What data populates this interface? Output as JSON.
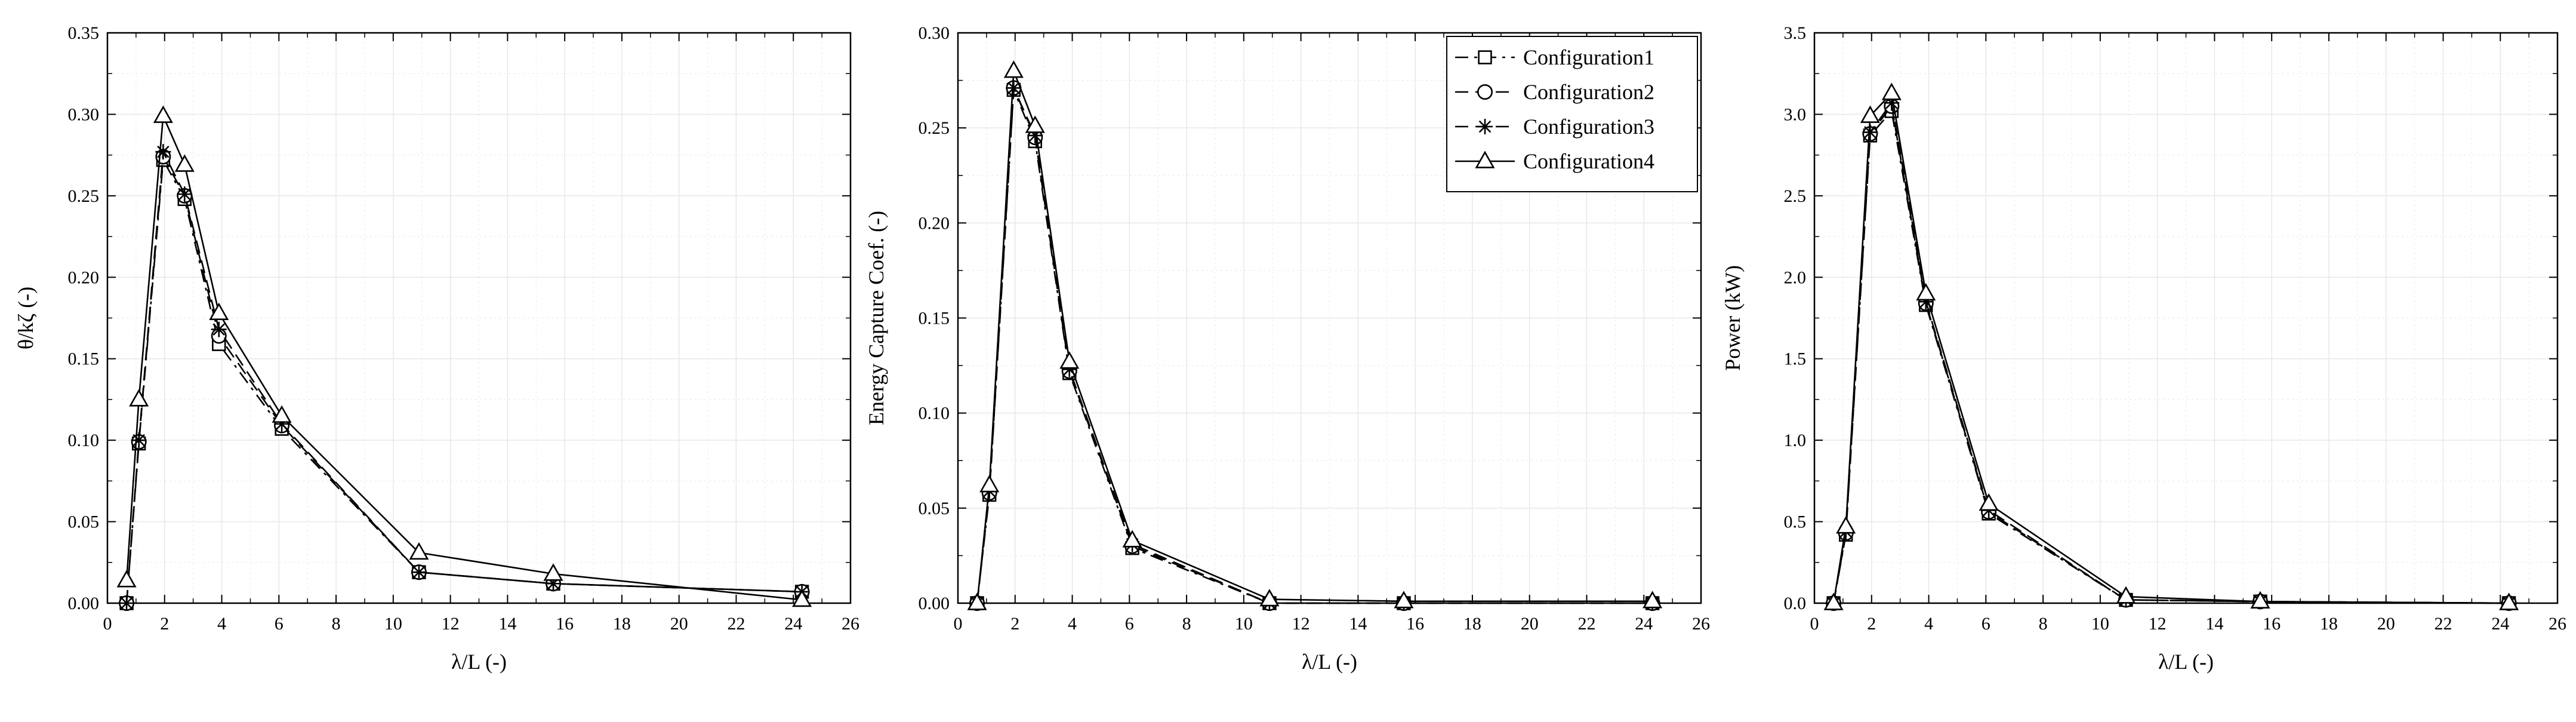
{
  "chart_data": [
    {
      "type": "line",
      "xlabel": "λ/L (-)",
      "ylabel": "θ/kζ (-)",
      "xlim": [
        0,
        26
      ],
      "ylim": [
        0,
        0.35
      ],
      "xticks": [
        "0",
        "2",
        "4",
        "6",
        "8",
        "10",
        "12",
        "14",
        "16",
        "18",
        "20",
        "22",
        "24",
        "26"
      ],
      "yticks": [
        "0.00",
        "0.05",
        "0.10",
        "0.15",
        "0.20",
        "0.25",
        "0.30",
        "0.35"
      ],
      "x": [
        0.67,
        1.1,
        1.95,
        2.7,
        3.9,
        6.1,
        10.9,
        15.6,
        24.3
      ],
      "series": [
        {
          "name": "Configuration1",
          "values": [
            0.0,
            0.098,
            0.272,
            0.248,
            0.159,
            0.107,
            0.019,
            0.012,
            0.007
          ]
        },
        {
          "name": "Configuration2",
          "values": [
            0.0,
            0.099,
            0.274,
            0.25,
            0.164,
            0.109,
            0.019,
            0.012,
            0.007
          ]
        },
        {
          "name": "Configuration3",
          "values": [
            0.0,
            0.1,
            0.277,
            0.251,
            0.168,
            0.11,
            0.019,
            0.012,
            0.007
          ]
        },
        {
          "name": "Configuration4",
          "values": [
            0.014,
            0.125,
            0.299,
            0.269,
            0.178,
            0.115,
            0.031,
            0.018,
            0.002
          ]
        }
      ]
    },
    {
      "type": "line",
      "xlabel": "λ/L (-)",
      "ylabel": "Energy Capture Coef. (-)",
      "xlim": [
        0,
        26
      ],
      "ylim": [
        0,
        0.3
      ],
      "xticks": [
        "0",
        "2",
        "4",
        "6",
        "8",
        "10",
        "12",
        "14",
        "16",
        "18",
        "20",
        "22",
        "24",
        "26"
      ],
      "yticks": [
        "0.00",
        "0.05",
        "0.10",
        "0.15",
        "0.20",
        "0.25",
        "0.30"
      ],
      "x": [
        0.67,
        1.1,
        1.95,
        2.7,
        3.9,
        6.1,
        10.9,
        15.6,
        24.3
      ],
      "legend_position": "top-right",
      "series": [
        {
          "name": "Configuration1",
          "values": [
            0.0,
            0.057,
            0.27,
            0.243,
            0.121,
            0.029,
            0.0,
            0.0,
            0.0
          ]
        },
        {
          "name": "Configuration2",
          "values": [
            0.0,
            0.058,
            0.271,
            0.245,
            0.122,
            0.03,
            0.0,
            0.0,
            0.0
          ]
        },
        {
          "name": "Configuration3",
          "values": [
            0.0,
            0.059,
            0.271,
            0.246,
            0.123,
            0.031,
            0.0,
            0.0,
            0.0
          ]
        },
        {
          "name": "Configuration4",
          "values": [
            0.0,
            0.062,
            0.28,
            0.251,
            0.127,
            0.033,
            0.002,
            0.001,
            0.001
          ]
        }
      ]
    },
    {
      "type": "line",
      "xlabel": "λ/L (-)",
      "ylabel": "Power (kW)",
      "xlim": [
        0,
        26
      ],
      "ylim": [
        0,
        3.5
      ],
      "xticks": [
        "0",
        "2",
        "4",
        "6",
        "8",
        "10",
        "12",
        "14",
        "16",
        "18",
        "20",
        "22",
        "24",
        "26"
      ],
      "yticks": [
        "0.0",
        "0.5",
        "1.0",
        "1.5",
        "2.0",
        "2.5",
        "3.0",
        "3.5"
      ],
      "x": [
        0.67,
        1.1,
        1.95,
        2.7,
        3.9,
        6.1,
        10.9,
        15.6,
        24.3
      ],
      "series": [
        {
          "name": "Configuration1",
          "values": [
            0.0,
            0.42,
            2.87,
            3.02,
            1.83,
            0.55,
            0.02,
            0.01,
            0.0
          ]
        },
        {
          "name": "Configuration2",
          "values": [
            0.0,
            0.43,
            2.88,
            3.05,
            1.84,
            0.56,
            0.02,
            0.01,
            0.0
          ]
        },
        {
          "name": "Configuration3",
          "values": [
            0.0,
            0.44,
            2.89,
            3.07,
            1.85,
            0.57,
            0.02,
            0.01,
            0.0
          ]
        },
        {
          "name": "Configuration4",
          "values": [
            0.0,
            0.47,
            2.99,
            3.13,
            1.9,
            0.61,
            0.04,
            0.01,
            0.0
          ]
        }
      ]
    }
  ],
  "series_style": {
    "Configuration1": {
      "marker": "square",
      "dash": "dashdot"
    },
    "Configuration2": {
      "marker": "circle",
      "dash": "dash"
    },
    "Configuration3": {
      "marker": "asterisk",
      "dash": "dash"
    },
    "Configuration4": {
      "marker": "triangle",
      "dash": "solid"
    }
  },
  "colors": {
    "line": "#000000",
    "grid": "#e8e8e8",
    "background": "#ffffff"
  }
}
